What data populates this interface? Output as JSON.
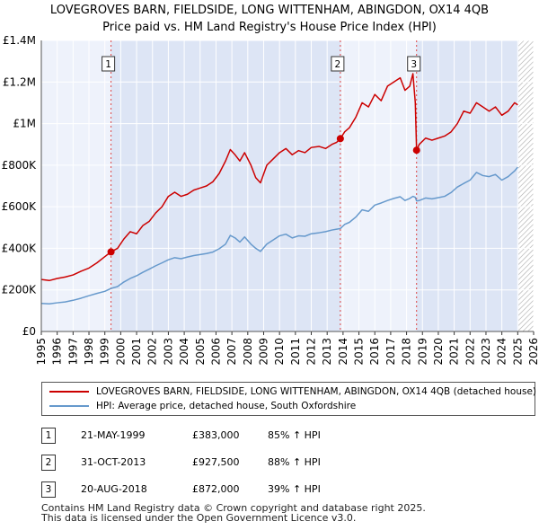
{
  "title": {
    "line1": "LOVEGROVES BARN, FIELDSIDE, LONG WITTENHAM, ABINGDON, OX14 4QB",
    "line2": "Price paid vs. HM Land Registry's House Price Index (HPI)"
  },
  "chart_data": {
    "type": "line",
    "title": "LOVEGROVES BARN, FIELDSIDE, LONG WITTENHAM, ABINGDON, OX14 4QB",
    "subtitle": "Price paid vs. HM Land Registry's House Price Index (HPI)",
    "xlabel": "",
    "ylabel": "",
    "xlim": [
      1995,
      2026
    ],
    "ylim": [
      0,
      1400000
    ],
    "x_ticks": [
      1995,
      1996,
      1997,
      1998,
      1999,
      2000,
      2001,
      2002,
      2003,
      2004,
      2005,
      2006,
      2007,
      2008,
      2009,
      2010,
      2011,
      2012,
      2013,
      2014,
      2015,
      2016,
      2017,
      2018,
      2019,
      2020,
      2021,
      2022,
      2023,
      2024,
      2025,
      2026
    ],
    "y_ticks": [
      {
        "value": 0,
        "label": "£0"
      },
      {
        "value": 200000,
        "label": "£200K"
      },
      {
        "value": 400000,
        "label": "£400K"
      },
      {
        "value": 600000,
        "label": "£600K"
      },
      {
        "value": 800000,
        "label": "£800K"
      },
      {
        "value": 1000000,
        "label": "£1M"
      },
      {
        "value": 1200000,
        "label": "£1.2M"
      },
      {
        "value": 1400000,
        "label": "£1.4M"
      }
    ],
    "grid": true,
    "future_hatch_from": 2025.05,
    "series": [
      {
        "name": "LOVEGROVES BARN, FIELDSIDE, LONG WITTENHAM, ABINGDON, OX14 4QB (detached house)",
        "color": "#cc0000",
        "points": [
          [
            1995.0,
            250000
          ],
          [
            1995.5,
            245000
          ],
          [
            1996.0,
            255000
          ],
          [
            1996.5,
            262000
          ],
          [
            1997.0,
            272000
          ],
          [
            1997.5,
            290000
          ],
          [
            1998.0,
            305000
          ],
          [
            1998.5,
            330000
          ],
          [
            1999.0,
            360000
          ],
          [
            1999.39,
            383000
          ],
          [
            1999.8,
            400000
          ],
          [
            2000.2,
            445000
          ],
          [
            2000.6,
            480000
          ],
          [
            2001.0,
            470000
          ],
          [
            2001.4,
            510000
          ],
          [
            2001.8,
            530000
          ],
          [
            2002.2,
            570000
          ],
          [
            2002.6,
            600000
          ],
          [
            2003.0,
            650000
          ],
          [
            2003.4,
            670000
          ],
          [
            2003.8,
            650000
          ],
          [
            2004.2,
            660000
          ],
          [
            2004.6,
            680000
          ],
          [
            2005.0,
            690000
          ],
          [
            2005.4,
            700000
          ],
          [
            2005.8,
            720000
          ],
          [
            2006.2,
            760000
          ],
          [
            2006.6,
            820000
          ],
          [
            2006.9,
            875000
          ],
          [
            2007.2,
            850000
          ],
          [
            2007.5,
            820000
          ],
          [
            2007.8,
            860000
          ],
          [
            2008.2,
            800000
          ],
          [
            2008.5,
            740000
          ],
          [
            2008.8,
            715000
          ],
          [
            2009.2,
            800000
          ],
          [
            2009.6,
            830000
          ],
          [
            2010.0,
            860000
          ],
          [
            2010.4,
            880000
          ],
          [
            2010.8,
            850000
          ],
          [
            2011.2,
            870000
          ],
          [
            2011.6,
            860000
          ],
          [
            2012.0,
            885000
          ],
          [
            2012.5,
            890000
          ],
          [
            2012.9,
            880000
          ],
          [
            2013.3,
            900000
          ],
          [
            2013.6,
            910000
          ],
          [
            2013.83,
            927500
          ],
          [
            2014.1,
            960000
          ],
          [
            2014.4,
            980000
          ],
          [
            2014.8,
            1030000
          ],
          [
            2015.2,
            1100000
          ],
          [
            2015.6,
            1080000
          ],
          [
            2016.0,
            1140000
          ],
          [
            2016.4,
            1110000
          ],
          [
            2016.8,
            1180000
          ],
          [
            2017.2,
            1200000
          ],
          [
            2017.6,
            1220000
          ],
          [
            2017.9,
            1160000
          ],
          [
            2018.2,
            1180000
          ],
          [
            2018.4,
            1240000
          ],
          [
            2018.55,
            1100000
          ],
          [
            2018.63,
            872000
          ],
          [
            2018.8,
            900000
          ],
          [
            2019.2,
            930000
          ],
          [
            2019.6,
            920000
          ],
          [
            2020.0,
            930000
          ],
          [
            2020.4,
            940000
          ],
          [
            2020.8,
            960000
          ],
          [
            2021.2,
            1000000
          ],
          [
            2021.6,
            1060000
          ],
          [
            2022.0,
            1050000
          ],
          [
            2022.4,
            1100000
          ],
          [
            2022.8,
            1080000
          ],
          [
            2023.2,
            1060000
          ],
          [
            2023.6,
            1080000
          ],
          [
            2024.0,
            1040000
          ],
          [
            2024.4,
            1060000
          ],
          [
            2024.8,
            1100000
          ],
          [
            2025.0,
            1090000
          ]
        ]
      },
      {
        "name": "HPI: Average price, detached house, South Oxfordshire",
        "color": "#6699cc",
        "points": [
          [
            1995.0,
            135000
          ],
          [
            1995.5,
            133000
          ],
          [
            1996.0,
            138000
          ],
          [
            1996.5,
            142000
          ],
          [
            1997.0,
            150000
          ],
          [
            1997.5,
            160000
          ],
          [
            1998.0,
            172000
          ],
          [
            1998.5,
            183000
          ],
          [
            1999.0,
            193000
          ],
          [
            1999.39,
            207000
          ],
          [
            1999.8,
            216000
          ],
          [
            2000.2,
            238000
          ],
          [
            2000.6,
            255000
          ],
          [
            2001.0,
            268000
          ],
          [
            2001.4,
            285000
          ],
          [
            2001.8,
            300000
          ],
          [
            2002.2,
            316000
          ],
          [
            2002.6,
            330000
          ],
          [
            2003.0,
            345000
          ],
          [
            2003.4,
            355000
          ],
          [
            2003.8,
            350000
          ],
          [
            2004.2,
            358000
          ],
          [
            2004.6,
            365000
          ],
          [
            2005.0,
            370000
          ],
          [
            2005.4,
            375000
          ],
          [
            2005.8,
            382000
          ],
          [
            2006.2,
            398000
          ],
          [
            2006.6,
            420000
          ],
          [
            2006.9,
            462000
          ],
          [
            2007.2,
            450000
          ],
          [
            2007.5,
            430000
          ],
          [
            2007.8,
            455000
          ],
          [
            2008.2,
            420000
          ],
          [
            2008.5,
            400000
          ],
          [
            2008.8,
            385000
          ],
          [
            2009.2,
            420000
          ],
          [
            2009.6,
            440000
          ],
          [
            2010.0,
            460000
          ],
          [
            2010.4,
            468000
          ],
          [
            2010.8,
            450000
          ],
          [
            2011.2,
            460000
          ],
          [
            2011.6,
            458000
          ],
          [
            2012.0,
            470000
          ],
          [
            2012.5,
            475000
          ],
          [
            2012.9,
            480000
          ],
          [
            2013.3,
            488000
          ],
          [
            2013.6,
            492000
          ],
          [
            2013.83,
            495000
          ],
          [
            2014.1,
            515000
          ],
          [
            2014.4,
            525000
          ],
          [
            2014.8,
            550000
          ],
          [
            2015.2,
            585000
          ],
          [
            2015.6,
            578000
          ],
          [
            2016.0,
            608000
          ],
          [
            2016.4,
            618000
          ],
          [
            2016.8,
            630000
          ],
          [
            2017.2,
            640000
          ],
          [
            2017.6,
            648000
          ],
          [
            2017.9,
            630000
          ],
          [
            2018.2,
            640000
          ],
          [
            2018.4,
            650000
          ],
          [
            2018.55,
            645000
          ],
          [
            2018.63,
            628000
          ],
          [
            2018.8,
            630000
          ],
          [
            2019.2,
            642000
          ],
          [
            2019.6,
            638000
          ],
          [
            2020.0,
            644000
          ],
          [
            2020.4,
            650000
          ],
          [
            2020.8,
            668000
          ],
          [
            2021.2,
            695000
          ],
          [
            2021.6,
            712000
          ],
          [
            2022.0,
            728000
          ],
          [
            2022.4,
            765000
          ],
          [
            2022.8,
            750000
          ],
          [
            2023.2,
            745000
          ],
          [
            2023.6,
            755000
          ],
          [
            2024.0,
            728000
          ],
          [
            2024.4,
            745000
          ],
          [
            2024.8,
            772000
          ],
          [
            2025.0,
            790000
          ]
        ]
      }
    ],
    "transactions": [
      {
        "num": "1",
        "x": 1999.39,
        "price": 383000
      },
      {
        "num": "2",
        "x": 2013.83,
        "price": 927500
      },
      {
        "num": "3",
        "x": 2018.63,
        "price": 872000
      }
    ]
  },
  "legend": {
    "items": [
      {
        "label": "LOVEGROVES BARN, FIELDSIDE, LONG WITTENHAM, ABINGDON, OX14 4QB (detached house)",
        "color": "#cc0000"
      },
      {
        "label": "HPI: Average price, detached house, South Oxfordshire",
        "color": "#6699cc"
      }
    ]
  },
  "transactions_table": [
    {
      "num": "1",
      "date": "21-MAY-1999",
      "price": "£383,000",
      "hpi": "85% ↑ HPI"
    },
    {
      "num": "2",
      "date": "31-OCT-2013",
      "price": "£927,500",
      "hpi": "88% ↑ HPI"
    },
    {
      "num": "3",
      "date": "20-AUG-2018",
      "price": "£872,000",
      "hpi": "39% ↑ HPI"
    }
  ],
  "footer": {
    "line1": "Contains HM Land Registry data © Crown copyright and database right 2025.",
    "line2": "This data is licensed under the Open Government Licence v3.0."
  }
}
